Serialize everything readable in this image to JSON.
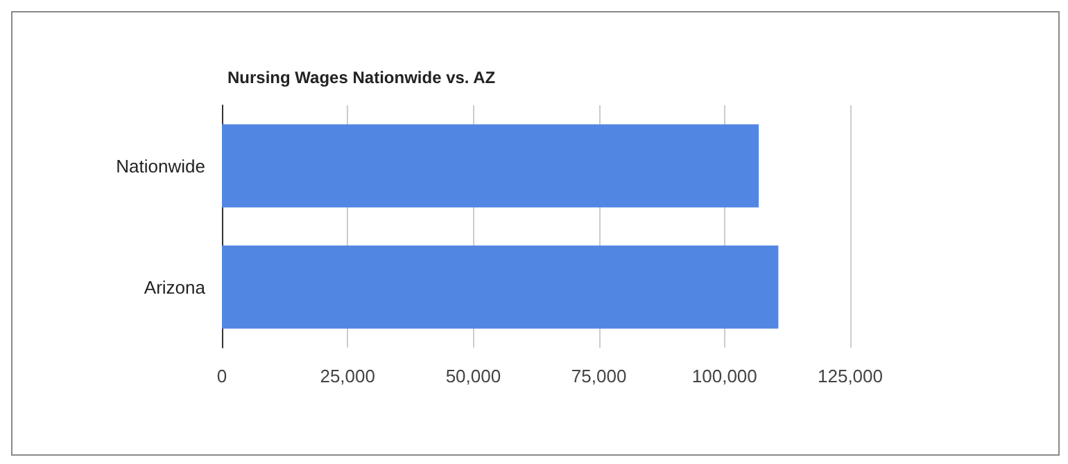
{
  "chart_data": {
    "type": "bar",
    "orientation": "horizontal",
    "title": "Nursing Wages Nationwide vs. AZ",
    "categories": [
      "Nationwide",
      "Arizona"
    ],
    "values": [
      106800,
      110700
    ],
    "color": "#5286e3",
    "xlim": [
      0,
      125000
    ],
    "xticks": [
      0,
      {
        "value": 25000,
        "label": "25,000"
      },
      {
        "value": 50000,
        "label": "50,000"
      },
      {
        "value": 75000,
        "label": "75,000"
      },
      {
        "value": 100000,
        "label": "100,000"
      },
      {
        "value": 125000,
        "label": "125,000"
      }
    ],
    "grid": "x"
  }
}
